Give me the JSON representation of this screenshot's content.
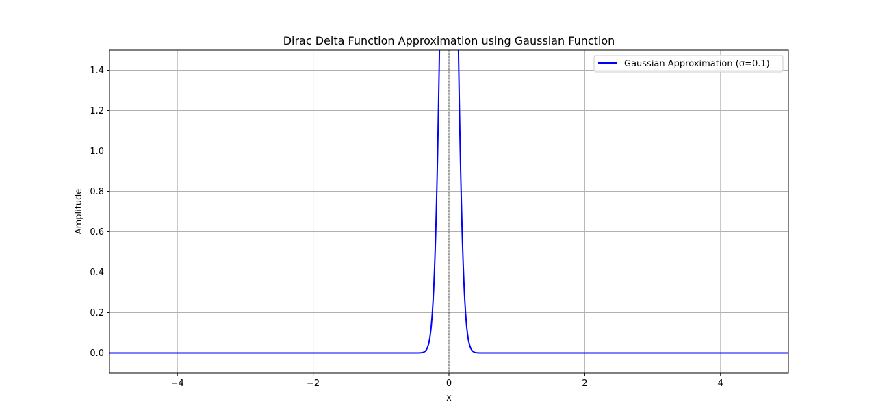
{
  "chart_data": {
    "type": "line",
    "title": "Dirac Delta Function Approximation using Gaussian Function",
    "xlabel": "x",
    "ylabel": "Amplitude",
    "xlim": [
      -5,
      5
    ],
    "ylim": [
      -0.1,
      1.5
    ],
    "x_ticks": [
      -4,
      -2,
      0,
      2,
      4
    ],
    "x_tick_labels": [
      "−4",
      "−2",
      "0",
      "2",
      "4"
    ],
    "y_ticks": [
      0.0,
      0.2,
      0.4,
      0.6,
      0.8,
      1.0,
      1.2,
      1.4
    ],
    "y_tick_labels": [
      "0.0",
      "0.2",
      "0.4",
      "0.6",
      "0.8",
      "1.0",
      "1.2",
      "1.4"
    ],
    "grid": true,
    "legend_position": "top-right",
    "reference_lines": [
      {
        "orientation": "horizontal",
        "value": 0,
        "style": "dashed",
        "color": "#000000"
      },
      {
        "orientation": "vertical",
        "value": 0,
        "style": "dashed",
        "color": "#000000"
      }
    ],
    "series": [
      {
        "name": "Gaussian Approximation (σ=0.1)",
        "color": "#0000ff",
        "function": "gaussian",
        "mu": 0,
        "sigma": 0.1,
        "x_range": [
          -5,
          5
        ]
      }
    ]
  },
  "colors": {
    "grid": "#b0b0b0",
    "axes": "#000000",
    "line": "#0000ff",
    "background": "#ffffff"
  }
}
